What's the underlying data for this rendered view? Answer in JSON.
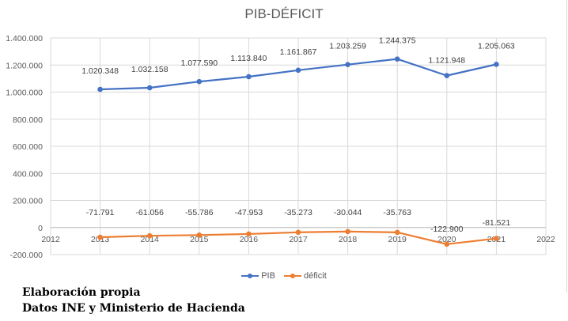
{
  "chart_data": {
    "type": "line",
    "title": "PIB-DÉFICIT",
    "x": [
      2013,
      2014,
      2015,
      2016,
      2017,
      2018,
      2019,
      2020,
      2021
    ],
    "xlim": [
      2012,
      2022
    ],
    "x_ticks": [
      "2012",
      "2013",
      "2014",
      "2015",
      "2016",
      "2017",
      "2018",
      "2019",
      "2020",
      "2021",
      "2022"
    ],
    "ylim": [
      -200000,
      1400000
    ],
    "y_ticks": [
      "-200.000",
      "0",
      "200.000",
      "400.000",
      "600.000",
      "800.000",
      "1.000.000",
      "1.200.000",
      "1.400.000"
    ],
    "y_tick_values": [
      -200000,
      0,
      200000,
      400000,
      600000,
      800000,
      1000000,
      1200000,
      1400000
    ],
    "grid": true,
    "legend_position": "bottom",
    "series": [
      {
        "name": "PIB",
        "color": "#4472C4",
        "values": [
          1020348,
          1032158,
          1077590,
          1113840,
          1161867,
          1203259,
          1244375,
          1121948,
          1205063
        ],
        "labels": [
          "1.020.348",
          "1.032.158",
          "1.077.590",
          "1.113.840",
          "1.161.867",
          "1.203.259",
          "1.244.375",
          "1.121.948",
          "1.205.063"
        ]
      },
      {
        "name": "déficit",
        "color": "#ED7D31",
        "values": [
          -71791,
          -61056,
          -55786,
          -47953,
          -35273,
          -30044,
          -35763,
          -122900,
          -81521
        ],
        "labels": [
          "-71.791",
          "-61.056",
          "-55.786",
          "-47.953",
          "-35.273",
          "-30.044",
          "-35.763",
          "-122.900",
          "-81.521"
        ]
      }
    ]
  },
  "footer": {
    "line1": "Elaboración propia",
    "line2": "Datos INE y Ministerio de Hacienda"
  }
}
